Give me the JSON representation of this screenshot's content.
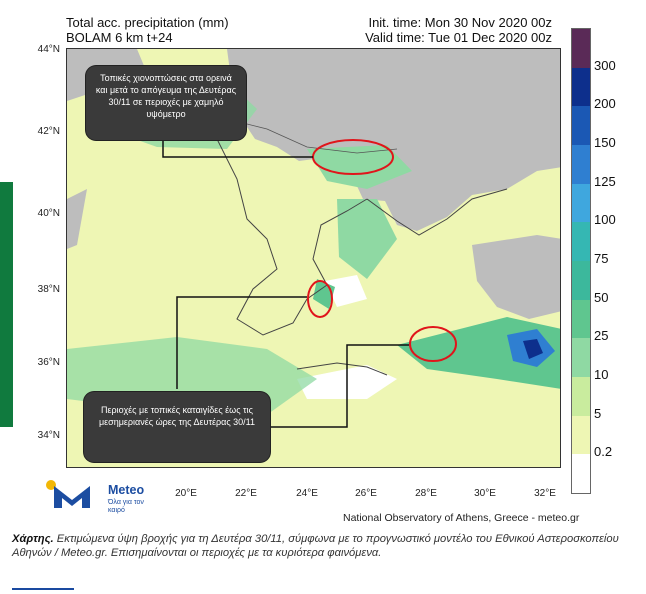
{
  "header": {
    "line1_left": "Total acc. precipitation (mm)",
    "line2_left": "BOLAM 6 km t+24",
    "line1_right": "Init. time: Mon 30 Nov 2020 00z",
    "line2_right": "Valid time: Tue 01 Dec 2020 00z"
  },
  "axes": {
    "lat_labels": [
      "44°N",
      "42°N",
      "40°N",
      "38°N",
      "36°N",
      "34°N"
    ],
    "lon_labels": [
      "20°E",
      "22°E",
      "24°E",
      "26°E",
      "28°E",
      "30°E",
      "32°E"
    ]
  },
  "scale": {
    "labels": [
      "300",
      "200",
      "150",
      "125",
      "100",
      "75",
      "50",
      "25",
      "10",
      "5",
      "0.2"
    ],
    "colors": [
      "#5a2a57",
      "#0d2f8c",
      "#1b58b4",
      "#2f7fd1",
      "#3fa7de",
      "#35b7b3",
      "#3cb89c",
      "#5fc68f",
      "#8fd9a3",
      "#c9ec9e",
      "#eef6b4",
      "#ffffff"
    ]
  },
  "callouts": {
    "snow": "Τοπικές χιονοπτώσεις στα ορεινά και μετά το απόγευμα της Δευτέρας 30/11 σε περιοχές με χαμηλό υψόμετρο",
    "storms": "Περιοχές με τοπικές καταιγίδες έως τις μεσημεριανές ώρες της Δευτέρας 30/11"
  },
  "logo": {
    "name": "Meteo",
    "tagline": "Όλα για τον καιρό",
    "brand_color": "#1c4da1"
  },
  "credit": "National Observatory of Athens, Greece - meteo.gr",
  "caption": {
    "label": "Χάρτης.",
    "text": " Εκτιμώμενα ύψη βροχής για τη Δευτέρα 30/11, σύμφωνα με το προγνωστικό μοντέλο του Εθνικού Αστεροσκοπείου Αθηνών / Meteo.gr. Επισημαίνονται οι περιοχές με τα κυριότερα φαινόμενα."
  },
  "colors": {
    "sea_dry": "#ffffff",
    "land_gray": "#bdbdbd",
    "light_rain": "#eef6b4",
    "annotation_red": "#e0151b",
    "side_bar": "#107a3e"
  }
}
